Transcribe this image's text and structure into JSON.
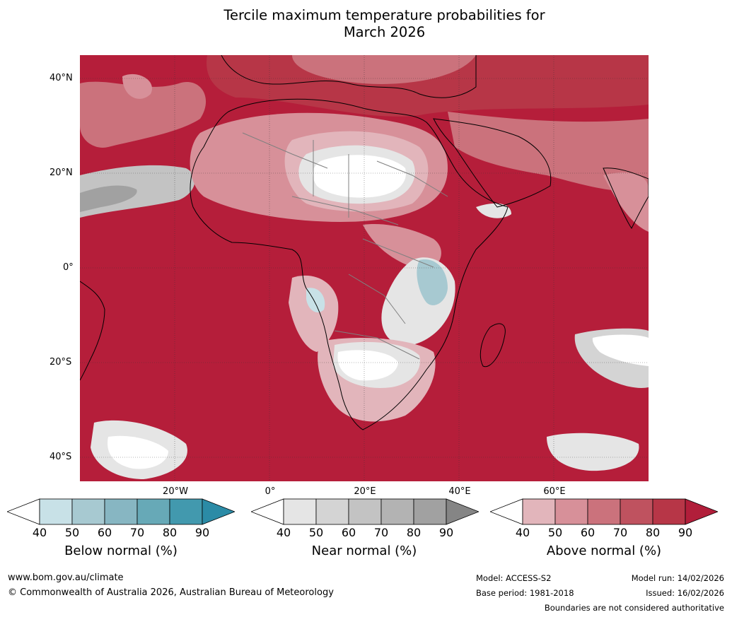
{
  "title_line1": "Tercile maximum temperature probabilities for",
  "title_line2": "March 2026",
  "lat_labels": [
    "40°N",
    "20°N",
    "0°",
    "20°S",
    "40°S"
  ],
  "lon_labels": [
    "20°W",
    "0°",
    "20°E",
    "40°E",
    "60°E"
  ],
  "colorbars": [
    {
      "title": "Below normal (%)",
      "ticks": [
        "40",
        "50",
        "60",
        "70",
        "80",
        "90"
      ],
      "colors": [
        "#ffffff",
        "#c8e1e7",
        "#a7c9d1",
        "#87b6c2",
        "#67a9b7",
        "#4299ae",
        "#2b8ba6"
      ]
    },
    {
      "title": "Near normal (%)",
      "ticks": [
        "40",
        "50",
        "60",
        "70",
        "80",
        "90"
      ],
      "colors": [
        "#ffffff",
        "#e5e5e5",
        "#d4d4d4",
        "#c3c3c3",
        "#b3b3b3",
        "#a1a1a1",
        "#858585"
      ]
    },
    {
      "title": "Above normal (%)",
      "ticks": [
        "40",
        "50",
        "60",
        "70",
        "80",
        "90"
      ],
      "colors": [
        "#ffffff",
        "#e2b5bb",
        "#d79099",
        "#cb727c",
        "#bf525f",
        "#b73647",
        "#b11e3a"
      ]
    }
  ],
  "footer": {
    "website": "www.bom.gov.au/climate",
    "copyright": "© Commonwealth of Australia 2026, Australian Bureau of Meteorology",
    "model": "Model: ACCESS-S2",
    "base_period": "Base period: 1981-2018",
    "model_run": "Model run: 14/02/2026",
    "issued": "Issued: 16/02/2026",
    "disclaimer": "Boundaries are not considered authoritative"
  }
}
